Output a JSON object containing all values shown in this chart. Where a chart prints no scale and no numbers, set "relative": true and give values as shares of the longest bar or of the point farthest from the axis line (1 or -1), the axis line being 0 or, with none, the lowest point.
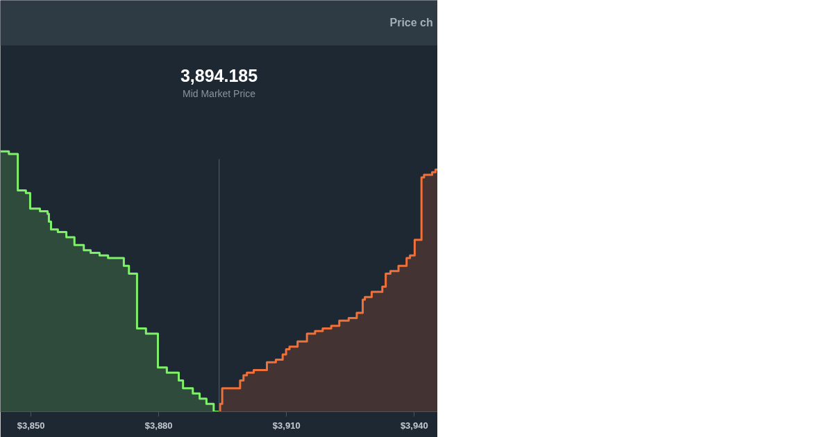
{
  "chart_data": {
    "type": "step",
    "title": "3,894.185",
    "subtitle": "Mid Market Price",
    "relative": true,
    "annotations": [
      "Price ch"
    ],
    "xlim": [
      3842.8,
      3945.5
    ],
    "xticks": [
      {
        "value": 3850,
        "label": "$3,850"
      },
      {
        "value": 3880,
        "label": "$3,880"
      },
      {
        "value": 3910,
        "label": "$3,910"
      },
      {
        "value": 3940,
        "label": "$3,940"
      }
    ],
    "grid": false,
    "ref_lines": [
      {
        "axis": "x",
        "value": 3894.185,
        "label": null,
        "color": "#56636e"
      }
    ],
    "series": [
      {
        "color": "#7ef06a",
        "x": [
          3842.8,
          3844.8,
          3846.9,
          3848.8,
          3849.8,
          3852.1,
          3853.9,
          3854.2,
          3854.7,
          3856.3,
          3858.3,
          3860.2,
          3862.4,
          3864.0,
          3866.1,
          3868.1,
          3871.8,
          3873.0,
          3874.9,
          3877.0,
          3879.8,
          3881.9,
          3884.7,
          3885.7,
          3888.0,
          3889.6,
          3891.2,
          3892.9,
          3894.2
        ],
        "values": [
          1.0,
          0.99,
          0.85,
          0.84,
          0.78,
          0.77,
          0.76,
          0.73,
          0.7,
          0.69,
          0.67,
          0.64,
          0.62,
          0.61,
          0.6,
          0.59,
          0.56,
          0.53,
          0.32,
          0.3,
          0.17,
          0.15,
          0.12,
          0.09,
          0.07,
          0.05,
          0.03,
          0.0,
          0.0
        ]
      },
      {
        "color": "#f0703a",
        "x": [
          3894.2,
          3894.4,
          3894.9,
          3899.1,
          3899.9,
          3900.7,
          3902.3,
          3903.9,
          3905.4,
          3907.5,
          3909.1,
          3909.9,
          3910.7,
          3912.6,
          3914.8,
          3916.7,
          3918.5,
          3920.5,
          3922.4,
          3924.6,
          3926.5,
          3927.9,
          3928.4,
          3930.0,
          3932.5,
          3933.3,
          3934.4,
          3936.3,
          3938.2,
          3939.0,
          3940.1,
          3941.7,
          3942.3,
          3944.2,
          3945.0,
          3945.5
        ],
        "values": [
          0.0,
          0.03,
          0.09,
          0.12,
          0.14,
          0.15,
          0.16,
          0.16,
          0.19,
          0.2,
          0.22,
          0.24,
          0.25,
          0.27,
          0.3,
          0.31,
          0.32,
          0.33,
          0.35,
          0.36,
          0.38,
          0.43,
          0.44,
          0.46,
          0.48,
          0.53,
          0.54,
          0.56,
          0.59,
          0.6,
          0.66,
          0.9,
          0.91,
          0.92,
          0.93,
          0.93
        ]
      }
    ]
  }
}
